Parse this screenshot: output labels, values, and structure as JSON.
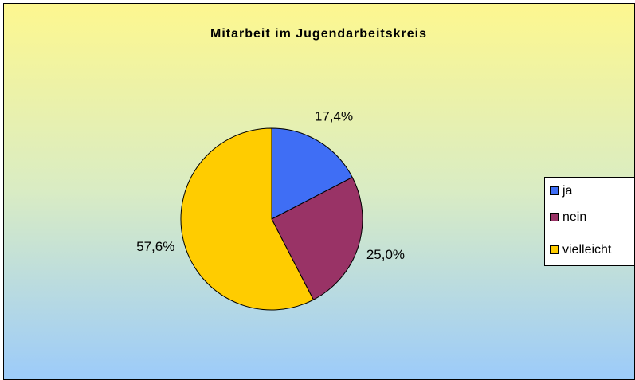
{
  "chart_data": {
    "type": "pie",
    "title": "Mitarbeit im Jugendarbeitskreis",
    "categories": [
      "ja",
      "nein",
      "vielleicht"
    ],
    "values": [
      17.4,
      25.0,
      57.6
    ],
    "value_labels": [
      "17,4%",
      "25,0%",
      "57,6%"
    ],
    "colors": [
      "#3f6ef5",
      "#993366",
      "#ffcc00"
    ],
    "legend": "right"
  }
}
